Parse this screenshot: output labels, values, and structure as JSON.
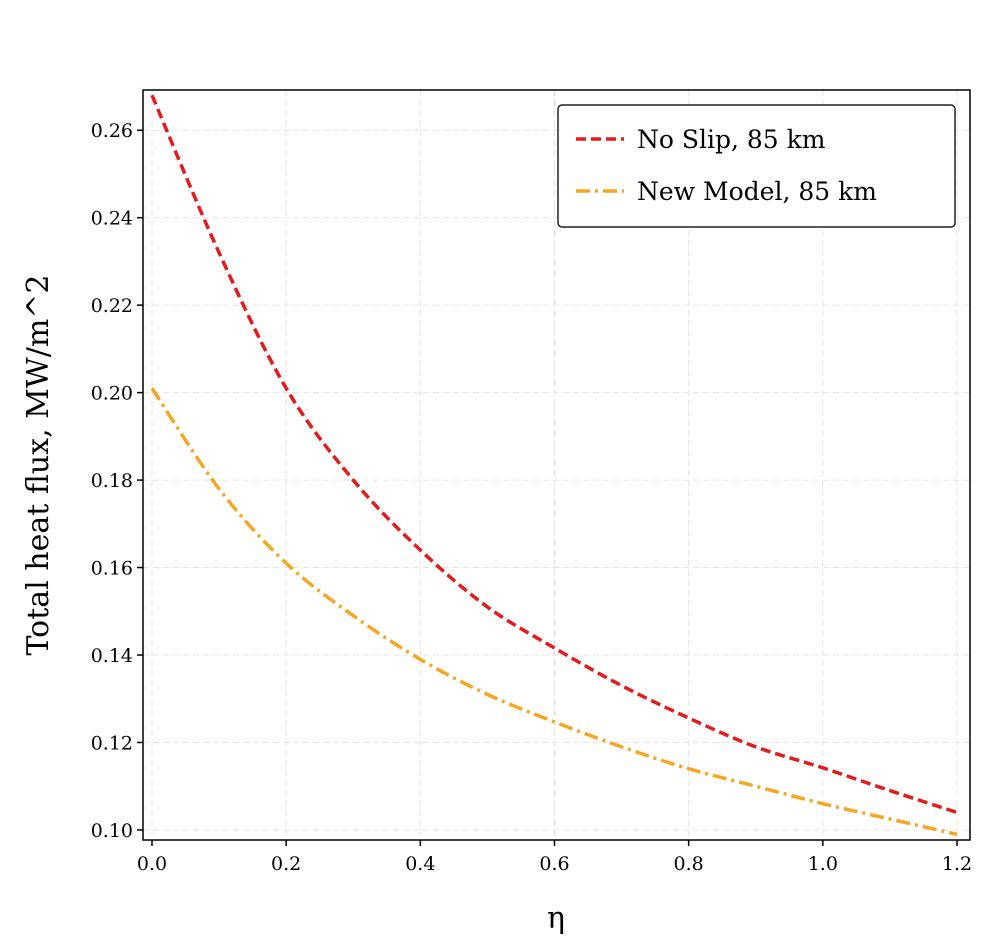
{
  "chart_data": {
    "type": "line",
    "title": "",
    "xlabel": "η",
    "ylabel": "Total heat flux, MW/m^2",
    "xlim": [
      -0.0134,
      1.2194
    ],
    "ylim": [
      0.0977,
      0.2692
    ],
    "xticks": [
      0.0,
      0.2,
      0.4,
      0.6,
      0.8,
      1.0,
      1.2
    ],
    "xtick_labels": [
      "0.0",
      "0.2",
      "0.4",
      "0.6",
      "0.8",
      "1.0",
      "1.2"
    ],
    "yticks": [
      0.1,
      0.12,
      0.14,
      0.16,
      0.18,
      0.2,
      0.22,
      0.24,
      0.26
    ],
    "ytick_labels": [
      "0.10",
      "0.12",
      "0.14",
      "0.16",
      "0.18",
      "0.20",
      "0.22",
      "0.24",
      "0.26"
    ],
    "grid": true,
    "legend_position": "top-right",
    "x": [
      0.0,
      0.1,
      0.2,
      0.3,
      0.4,
      0.5,
      0.6,
      0.7,
      0.8,
      0.9,
      1.0,
      1.1,
      1.2
    ],
    "series": [
      {
        "name": "No Slip, 85 km",
        "color": "#e41a1c",
        "style": "dashed",
        "values": [
          0.268,
          0.232,
          0.201,
          0.18,
          0.164,
          0.151,
          0.1416,
          0.133,
          0.1256,
          0.119,
          0.1142,
          0.109,
          0.104
        ]
      },
      {
        "name": "New Model, 85 km",
        "color": "#f5a623",
        "style": "dashdot",
        "values": [
          0.201,
          0.178,
          0.161,
          0.149,
          0.139,
          0.131,
          0.1247,
          0.119,
          0.114,
          0.11,
          0.106,
          0.1025,
          0.099
        ]
      }
    ]
  }
}
